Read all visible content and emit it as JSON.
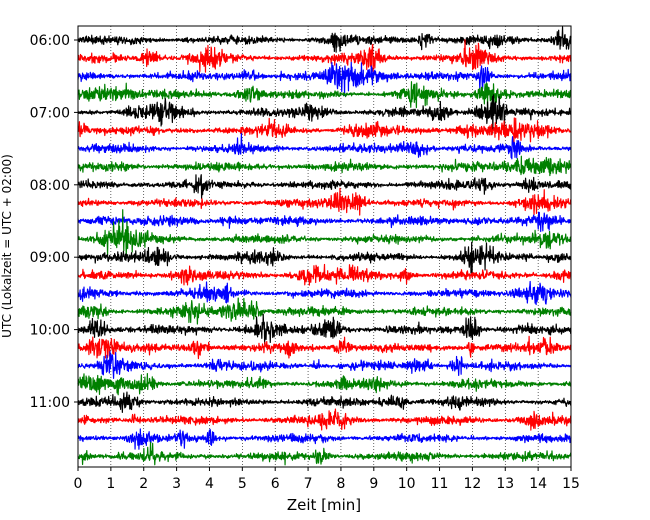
{
  "chart_data": {
    "type": "line",
    "title": "",
    "xlabel": "Zeit  [min]",
    "ylabel": "UTC (Lokalzeit = UTC + 02:00)",
    "xlim": [
      0,
      15
    ],
    "x_ticks": [
      0,
      1,
      2,
      3,
      4,
      5,
      6,
      7,
      8,
      9,
      10,
      11,
      12,
      13,
      14,
      15
    ],
    "y_tick_labels": [
      "06:00",
      "07:00",
      "08:00",
      "09:00",
      "10:00",
      "11:00"
    ],
    "trace_interval_min": 15,
    "traces_per_tick": 4,
    "grid": "vertical dotted at every minute",
    "colors": {
      "black": "#000000",
      "red": "#ff0000",
      "blue": "#0000ff",
      "green": "#008000"
    },
    "series": [
      {
        "start": "06:00",
        "color": "black"
      },
      {
        "start": "06:15",
        "color": "red"
      },
      {
        "start": "06:30",
        "color": "blue"
      },
      {
        "start": "06:45",
        "color": "green"
      },
      {
        "start": "07:00",
        "color": "black"
      },
      {
        "start": "07:15",
        "color": "red"
      },
      {
        "start": "07:30",
        "color": "blue"
      },
      {
        "start": "07:45",
        "color": "green"
      },
      {
        "start": "08:00",
        "color": "black"
      },
      {
        "start": "08:15",
        "color": "red"
      },
      {
        "start": "08:30",
        "color": "blue"
      },
      {
        "start": "08:45",
        "color": "green"
      },
      {
        "start": "09:00",
        "color": "black"
      },
      {
        "start": "09:15",
        "color": "red"
      },
      {
        "start": "09:30",
        "color": "blue"
      },
      {
        "start": "09:45",
        "color": "green"
      },
      {
        "start": "10:00",
        "color": "black"
      },
      {
        "start": "10:15",
        "color": "red"
      },
      {
        "start": "10:30",
        "color": "blue"
      },
      {
        "start": "10:45",
        "color": "green"
      },
      {
        "start": "11:00",
        "color": "black"
      },
      {
        "start": "11:15",
        "color": "red"
      },
      {
        "start": "11:30",
        "color": "blue"
      },
      {
        "start": "11:45",
        "color": "green"
      }
    ]
  }
}
